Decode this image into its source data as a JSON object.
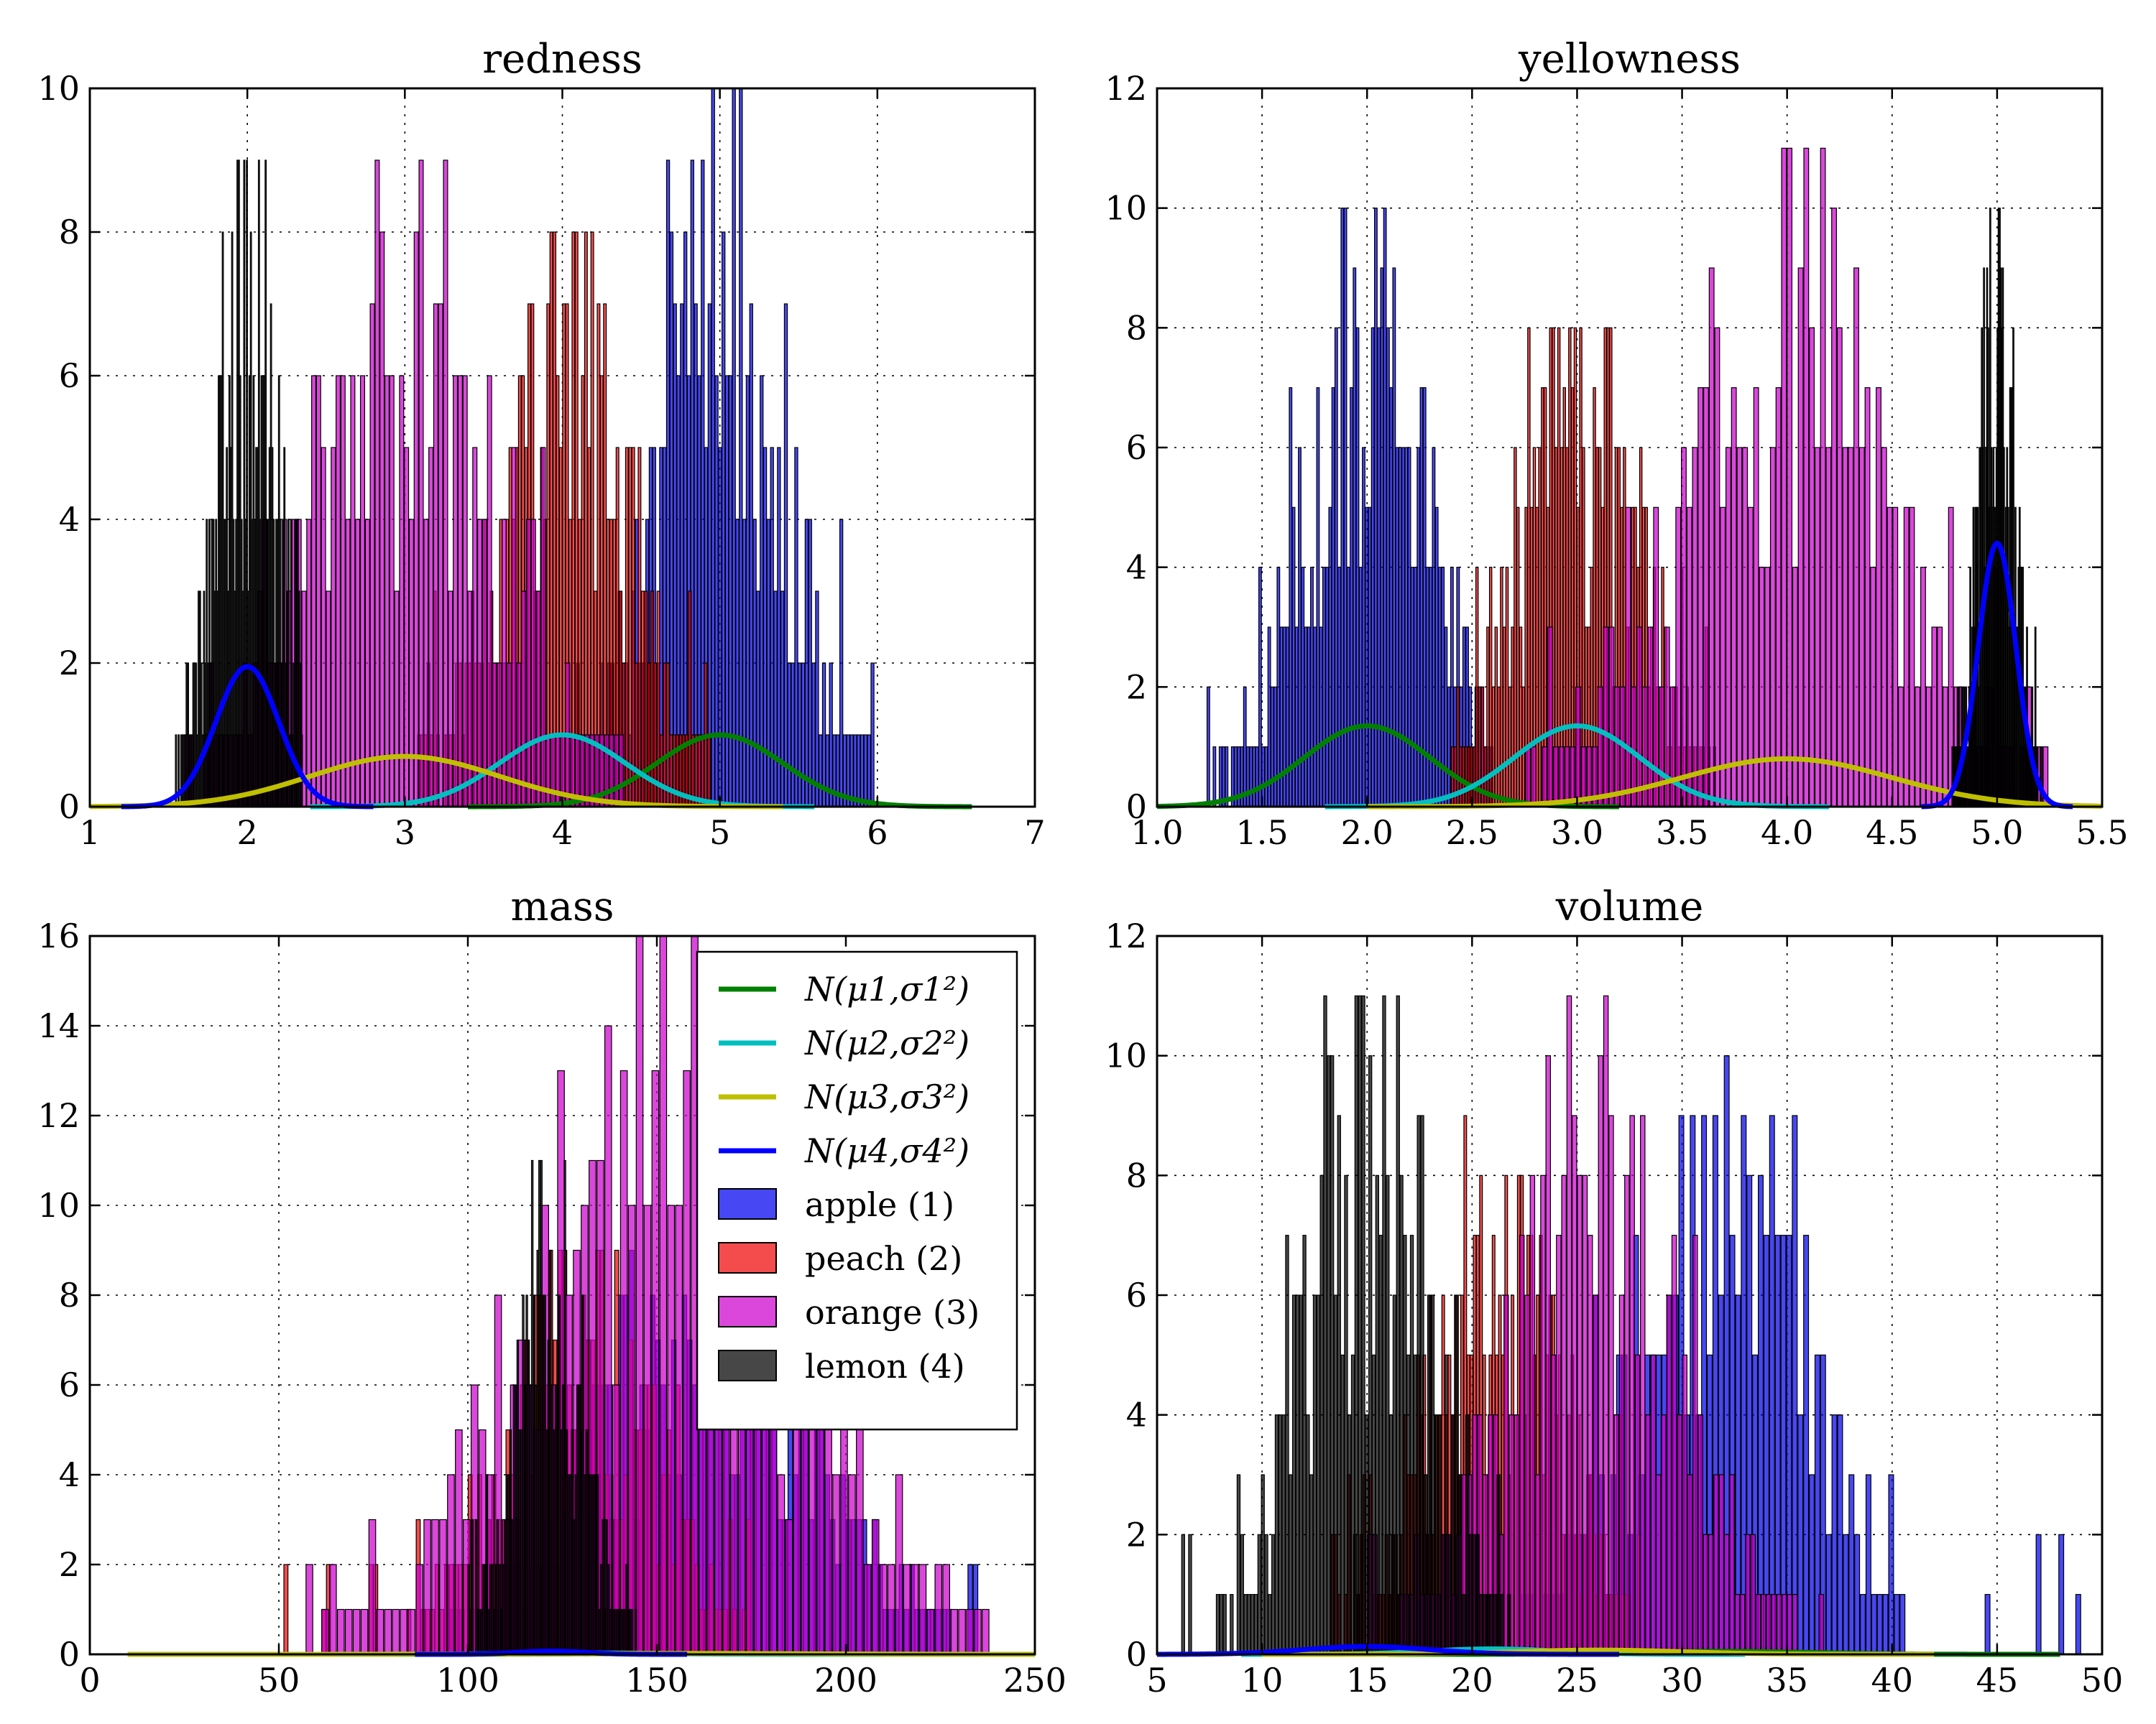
{
  "figure": {
    "panels": [
      {
        "title": "redness",
        "x_ticks": [
          "1",
          "2",
          "3",
          "4",
          "5",
          "6",
          "7"
        ],
        "y_ticks": [
          "0",
          "2",
          "4",
          "6",
          "8",
          "10"
        ]
      },
      {
        "title": "yellowness",
        "x_ticks": [
          "1.0",
          "1.5",
          "2.0",
          "2.5",
          "3.0",
          "3.5",
          "4.0",
          "4.5",
          "5.0",
          "5.5"
        ],
        "y_ticks": [
          "0",
          "2",
          "4",
          "6",
          "8",
          "10",
          "12"
        ]
      },
      {
        "title": "mass",
        "x_ticks": [
          "0",
          "50",
          "100",
          "150",
          "200",
          "250"
        ],
        "y_ticks": [
          "0",
          "2",
          "4",
          "6",
          "8",
          "10",
          "12",
          "14",
          "16"
        ]
      },
      {
        "title": "volume",
        "x_ticks": [
          "5",
          "10",
          "15",
          "20",
          "25",
          "30",
          "35",
          "40",
          "45",
          "50"
        ],
        "y_ticks": [
          "0",
          "2",
          "4",
          "6",
          "8",
          "10",
          "12"
        ]
      }
    ],
    "legend": {
      "curves": [
        "N(μ1,σ1²)",
        "N(μ2,σ2²)",
        "N(μ3,σ3²)",
        "N(μ4,σ4²)"
      ],
      "bars": [
        "apple (1)",
        "peach (2)",
        "orange (3)",
        "lemon (4)"
      ]
    }
  },
  "chart_data": [
    {
      "type": "bar",
      "title": "redness",
      "xlim": [
        1,
        7
      ],
      "ylim": [
        0,
        10
      ],
      "grid": true,
      "series": [
        {
          "name": "apple (1)",
          "color": "#0000ee",
          "center": 5.0,
          "spread": 0.4,
          "low": 4.0,
          "high": 6.2,
          "peak": 10
        },
        {
          "name": "peach (2)",
          "color": "#ee0000",
          "center": 4.0,
          "spread": 0.4,
          "low": 3.0,
          "high": 5.0,
          "peak": 8
        },
        {
          "name": "orange (3)",
          "color": "#cc00cc",
          "center": 3.0,
          "spread": 0.6,
          "low": 1.6,
          "high": 4.7,
          "peak": 9
        },
        {
          "name": "lemon (4)",
          "color": "#000000",
          "center": 2.0,
          "spread": 0.2,
          "low": 1.5,
          "high": 2.35,
          "peak": 9
        }
      ],
      "curves": [
        {
          "name": "N(μ1,σ1²)",
          "color": "#008000",
          "mean": 5.0,
          "sd": 0.4,
          "peak": 1.0
        },
        {
          "name": "N(μ2,σ2²)",
          "color": "#00bfbf",
          "mean": 4.0,
          "sd": 0.4,
          "peak": 1.0
        },
        {
          "name": "N(μ3,σ3²)",
          "color": "#bfbf00",
          "mean": 3.0,
          "sd": 0.6,
          "peak": 0.7
        },
        {
          "name": "N(μ4,σ4²)",
          "color": "#0000ff",
          "mean": 2.0,
          "sd": 0.2,
          "peak": 1.95
        }
      ]
    },
    {
      "type": "bar",
      "title": "yellowness",
      "xlim": [
        1.0,
        5.5
      ],
      "ylim": [
        0,
        12
      ],
      "grid": true,
      "series": [
        {
          "name": "apple (1)",
          "color": "#0000ee",
          "center": 2.0,
          "spread": 0.3,
          "low": 1.15,
          "high": 2.6,
          "peak": 10
        },
        {
          "name": "peach (2)",
          "color": "#ee0000",
          "center": 3.0,
          "spread": 0.3,
          "low": 2.4,
          "high": 3.7,
          "peak": 8
        },
        {
          "name": "orange (3)",
          "color": "#cc00cc",
          "center": 4.0,
          "spread": 0.5,
          "low": 2.7,
          "high": 5.35,
          "peak": 11
        },
        {
          "name": "lemon (4)",
          "color": "#000000",
          "center": 5.0,
          "spread": 0.09,
          "low": 4.75,
          "high": 5.25,
          "peak": 10
        }
      ],
      "curves": [
        {
          "name": "N(μ1,σ1²)",
          "color": "#008000",
          "mean": 2.0,
          "sd": 0.3,
          "peak": 1.35
        },
        {
          "name": "N(μ2,σ2²)",
          "color": "#00bfbf",
          "mean": 3.0,
          "sd": 0.3,
          "peak": 1.35
        },
        {
          "name": "N(μ3,σ3²)",
          "color": "#bfbf00",
          "mean": 4.0,
          "sd": 0.5,
          "peak": 0.8
        },
        {
          "name": "N(μ4,σ4²)",
          "color": "#0000ff",
          "mean": 5.0,
          "sd": 0.09,
          "peak": 4.4
        }
      ]
    },
    {
      "type": "bar",
      "title": "mass",
      "xlim": [
        0,
        250
      ],
      "ylim": [
        0,
        16
      ],
      "grid": true,
      "legend_position": "upper-right",
      "series": [
        {
          "name": "apple (1)",
          "color": "#0000ee",
          "center": 160,
          "spread": 30,
          "low": 95,
          "high": 235,
          "peak": 9
        },
        {
          "name": "peach (2)",
          "color": "#ee0000",
          "center": 130,
          "spread": 20,
          "low": 50,
          "high": 175,
          "peak": 9
        },
        {
          "name": "orange (3)",
          "color": "#cc00cc",
          "center": 150,
          "spread": 35,
          "low": 30,
          "high": 238,
          "peak": 16
        },
        {
          "name": "lemon (4)",
          "color": "#000000",
          "center": 122,
          "spread": 9,
          "low": 100,
          "high": 148,
          "peak": 11
        }
      ],
      "curves": [
        {
          "name": "N(μ1,σ1²)",
          "color": "#008000",
          "mean": 160,
          "sd": 30,
          "peak": 0.02
        },
        {
          "name": "N(μ2,σ2²)",
          "color": "#00bfbf",
          "mean": 130,
          "sd": 20,
          "peak": 0.03
        },
        {
          "name": "N(μ3,σ3²)",
          "color": "#bfbf00",
          "mean": 150,
          "sd": 35,
          "peak": 0.02
        },
        {
          "name": "N(μ4,σ4²)",
          "color": "#0000ff",
          "mean": 122,
          "sd": 9,
          "peak": 0.07
        }
      ]
    },
    {
      "type": "bar",
      "title": "volume",
      "xlim": [
        5,
        50
      ],
      "ylim": [
        0,
        12
      ],
      "grid": true,
      "series": [
        {
          "name": "apple (1)",
          "color": "#0000ee",
          "center": 32,
          "spread": 4,
          "low": 22,
          "high": 49,
          "peak": 10
        },
        {
          "name": "peach (2)",
          "color": "#ee0000",
          "center": 21,
          "spread": 3,
          "low": 13,
          "high": 28,
          "peak": 9
        },
        {
          "name": "orange (3)",
          "color": "#cc00cc",
          "center": 26,
          "spread": 4,
          "low": 15,
          "high": 40,
          "peak": 11
        },
        {
          "name": "lemon (4)",
          "color": "#000000",
          "center": 15,
          "spread": 3,
          "low": 5.5,
          "high": 22,
          "peak": 11
        }
      ],
      "curves": [
        {
          "name": "N(μ1,σ1²)",
          "color": "#008000",
          "mean": 32,
          "sd": 4,
          "peak": 0.05
        },
        {
          "name": "N(μ2,σ2²)",
          "color": "#00bfbf",
          "mean": 21,
          "sd": 3,
          "peak": 0.09
        },
        {
          "name": "N(μ3,σ3²)",
          "color": "#bfbf00",
          "mean": 26,
          "sd": 4,
          "peak": 0.07
        },
        {
          "name": "N(μ4,σ4²)",
          "color": "#0000ff",
          "mean": 15,
          "sd": 3,
          "peak": 0.13
        }
      ]
    }
  ]
}
